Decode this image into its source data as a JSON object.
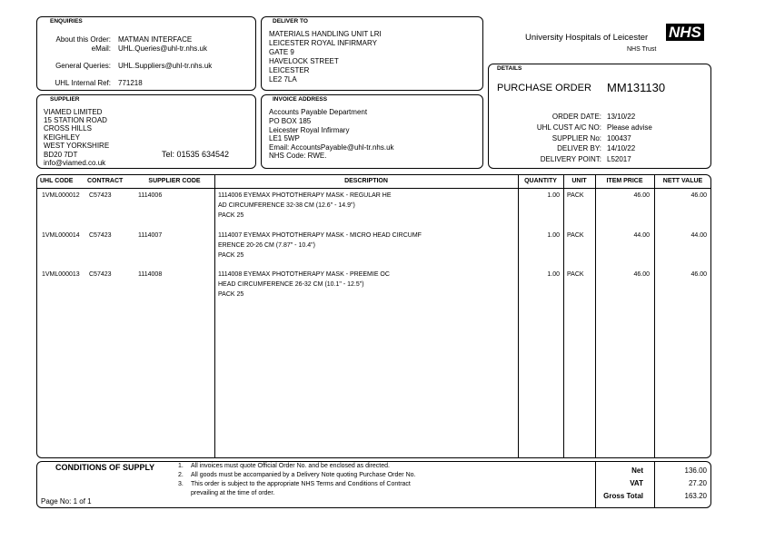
{
  "enquiries": {
    "label": "ENQUIRIES",
    "about_label": "About this Order:",
    "about": "MATMAN INTERFACE",
    "email_label": "eMail:",
    "email": "UHL.Queries@uhl-tr.nhs.uk",
    "general_label": "General Queries:",
    "general": "UHL.Suppliers@uhl-tr.nhs.uk",
    "ref_label": "UHL Internal Ref:",
    "ref": "771218"
  },
  "deliver_to": {
    "label": "DELIVER TO",
    "lines": [
      "MATERIALS HANDLING UNIT LRI",
      "LEICESTER ROYAL INFIRMARY",
      "GATE 9",
      "HAVELOCK STREET",
      "LEICESTER",
      "LE2 7LA"
    ]
  },
  "logo": {
    "org": "University Hospitals of Leicester",
    "badge": "NHS",
    "trust": "NHS Trust"
  },
  "details": {
    "label": "DETAILS",
    "doc_type": "PURCHASE ORDER",
    "number": "MM131130",
    "fields": [
      {
        "label": "ORDER DATE:",
        "value": "13/10/22"
      },
      {
        "label": "UHL CUST A/C NO:",
        "value": "Please advise"
      },
      {
        "label": "SUPPLIER No:",
        "value": "100437"
      },
      {
        "label": "DELIVER BY:",
        "value": "14/10/22"
      },
      {
        "label": "DELIVERY POINT:",
        "value": "L52017"
      }
    ]
  },
  "supplier": {
    "label": "SUPPLIER",
    "lines": [
      "VIAMED LIMITED",
      "15 STATION ROAD",
      "CROSS HILLS",
      "KEIGHLEY",
      "WEST YORKSHIRE",
      "BD20 7DT"
    ],
    "tel": "Tel: 01535 634542",
    "email": "info@viamed.co.uk"
  },
  "invoice": {
    "label": "INVOICE ADDRESS",
    "lines": [
      "Accounts Payable Department",
      "PO BOX 185",
      "Leicester Royal Infirmary",
      "LE1 5WP",
      "Email: AccountsPayable@uhl-tr.nhs.uk",
      "NHS Code: RWE."
    ]
  },
  "table": {
    "headers": [
      "UHL CODE",
      "CONTRACT",
      "SUPPLIER CODE",
      "DESCRIPTION",
      "QUANTITY",
      "UNIT",
      "ITEM PRICE",
      "NETT VALUE"
    ],
    "rows": [
      {
        "uhl_code": "1VML000012",
        "contract": "C57423",
        "supplier_code": "1114006",
        "description": [
          "1114006 EYEMAX PHOTOTHERAPY MASK - REGULAR HE",
          "AD CIRCUMFERENCE 32-38 CM (12.6\" - 14.9\")",
          "PACK 25"
        ],
        "quantity": "1.00",
        "unit": "PACK",
        "item_price": "46.00",
        "nett_value": "46.00"
      },
      {
        "uhl_code": "1VML000014",
        "contract": "C57423",
        "supplier_code": "1114007",
        "description": [
          "1114007 EYEMAX PHOTOTHERAPY MASK - MICRO HEAD CIRCUMF",
          "ERENCE 20-26 CM (7.87\" - 10.4\")",
          "PACK 25"
        ],
        "quantity": "1.00",
        "unit": "PACK",
        "item_price": "44.00",
        "nett_value": "44.00"
      },
      {
        "uhl_code": "1VML000013",
        "contract": "C57423",
        "supplier_code": "1114008",
        "description": [
          "1114008 EYEMAX PHOTOTHERAPY MASK - PREEMIE OC",
          "HEAD CIRCUMFERENCE 26-32 CM (10.1\" - 12.5\")",
          "PACK 25"
        ],
        "quantity": "1.00",
        "unit": "PACK",
        "item_price": "46.00",
        "nett_value": "46.00"
      }
    ]
  },
  "footer": {
    "conditions_title": "CONDITIONS OF SUPPLY",
    "conditions": [
      {
        "num": "1.",
        "text": "All invoices must quote Official Order No. and be enclosed as directed."
      },
      {
        "num": "2.",
        "text": "All goods must be accompanied by a Delivery Note quoting Purchase Order No."
      },
      {
        "num": "3.",
        "text": "This order is subject to the appropriate NHS Terms and Conditions of Contract"
      }
    ],
    "conditions_cont": "prevailing at the time of order.",
    "totals": [
      {
        "label": "Net",
        "value": "136.00"
      },
      {
        "label": "VAT",
        "value": "27.20"
      },
      {
        "label": "Gross Total",
        "value": "163.20"
      }
    ],
    "page": "Page No: 1 of 1"
  }
}
